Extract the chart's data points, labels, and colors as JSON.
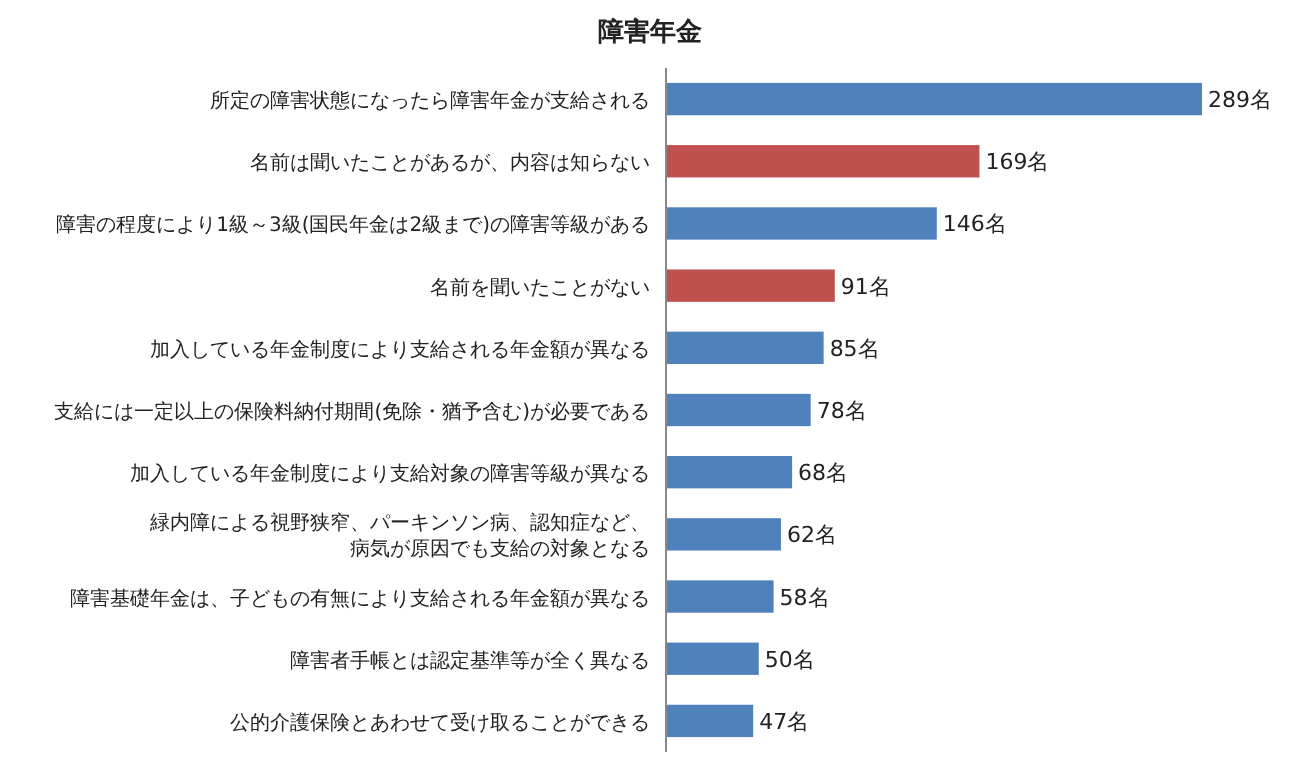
{
  "chart_data": {
    "type": "bar",
    "orientation": "horizontal",
    "title": "障害年金",
    "categories": [
      "所定の障害状態になったら障害年金が支給される",
      "名前は聞いたことがあるが、内容は知らない",
      "障害の程度により1級～3級(国民年金は2級まで)の障害等級がある",
      "名前を聞いたことがない",
      "加入している年金制度により支給される年金額が異なる",
      "支給には一定以上の保険料納付期間(免除・猶予含む)が必要である",
      "加入している年金制度により支給対象の障害等級が異なる",
      "緑内障による視野狭窄、パーキンソン病、認知症など、病気が原因でも支給の対象となる",
      "障害基礎年金は、子どもの有無により支給される年金額が異なる",
      "障害者手帳とは認定基準等が全く異なる",
      "公的介護保険とあわせて受け取ることができる"
    ],
    "values": [
      289,
      169,
      146,
      91,
      85,
      78,
      68,
      62,
      58,
      50,
      47
    ],
    "colors": [
      "#4f81bd",
      "#c0504d",
      "#4f81bd",
      "#c0504d",
      "#4f81bd",
      "#4f81bd",
      "#4f81bd",
      "#4f81bd",
      "#4f81bd",
      "#4f81bd",
      "#4f81bd"
    ],
    "value_labels": [
      "289名",
      "169名",
      "146名",
      "91名",
      "85名",
      "78名",
      "68名",
      "62名",
      "58名",
      "50名",
      "47名"
    ]
  }
}
